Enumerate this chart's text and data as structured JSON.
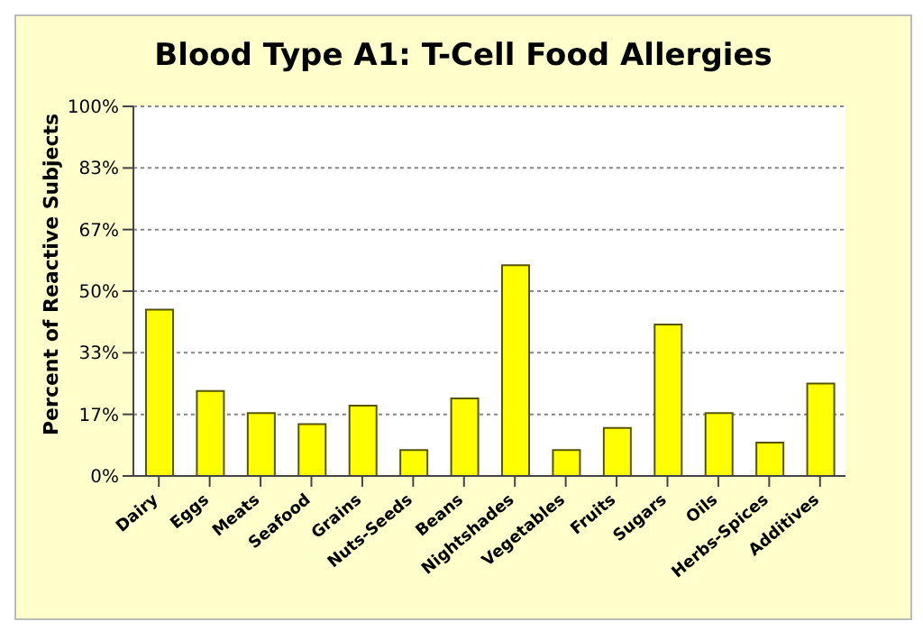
{
  "chart_data": {
    "type": "bar",
    "title": "Blood Type A1: T-Cell Food Allergies",
    "ylabel": "Percent of Reactive Subjects",
    "categories": [
      "Dairy",
      "Eggs",
      "Meats",
      "Seafood",
      "Grains",
      "Nuts-Seeds",
      "Beans",
      "Nightshades",
      "Vegetables",
      "Fruits",
      "Sugars",
      "Oils",
      "Herbs-Spices",
      "Additives"
    ],
    "values": [
      45,
      23,
      17,
      14,
      19,
      7,
      21,
      57,
      7,
      13,
      41,
      17,
      9,
      25
    ],
    "color": "#ffff00",
    "ylim": [
      0,
      100
    ],
    "yticks": [
      {
        "value": 0,
        "label": "0%"
      },
      {
        "value": 16.67,
        "label": "17%"
      },
      {
        "value": 33.33,
        "label": "33%"
      },
      {
        "value": 50,
        "label": "50%"
      },
      {
        "value": 66.67,
        "label": "67%"
      },
      {
        "value": 83.33,
        "label": "83%"
      },
      {
        "value": 100,
        "label": "100%"
      }
    ],
    "grid": "y"
  }
}
